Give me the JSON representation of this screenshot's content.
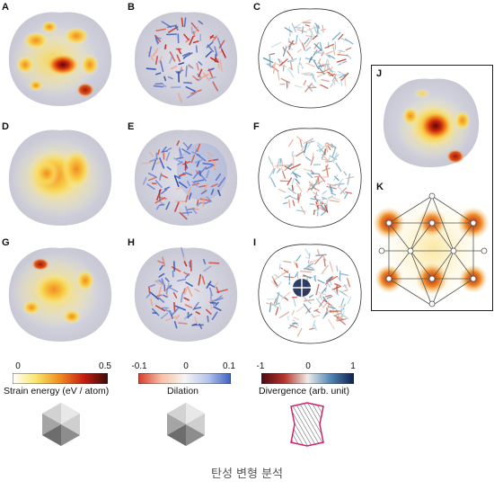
{
  "panels": [
    "A",
    "B",
    "C",
    "D",
    "E",
    "F",
    "G",
    "H",
    "I",
    "J",
    "K"
  ],
  "colorbars": [
    {
      "ticks": [
        "0",
        "0.5"
      ],
      "label": "Strain energy (eV / atom)",
      "colors": [
        "#ffffff",
        "#f9e56a",
        "#f08a1f",
        "#c41d12",
        "#3a0a08"
      ]
    },
    {
      "ticks": [
        "-0.1",
        "0",
        "0.1"
      ],
      "label": "Dilation",
      "colors": [
        "#d63a2b",
        "#f7c1a8",
        "#f7f4f2",
        "#b7c6ea",
        "#3d5fc4"
      ]
    },
    {
      "ticks": [
        "-1",
        "0",
        "1"
      ],
      "label": "Divergence (arb. unit)",
      "colors": [
        "#4a0a10",
        "#b5352e",
        "#f0ece8",
        "#4f86b5",
        "#0f1f4a"
      ]
    }
  ],
  "caption": "탄성 변형 분석"
}
